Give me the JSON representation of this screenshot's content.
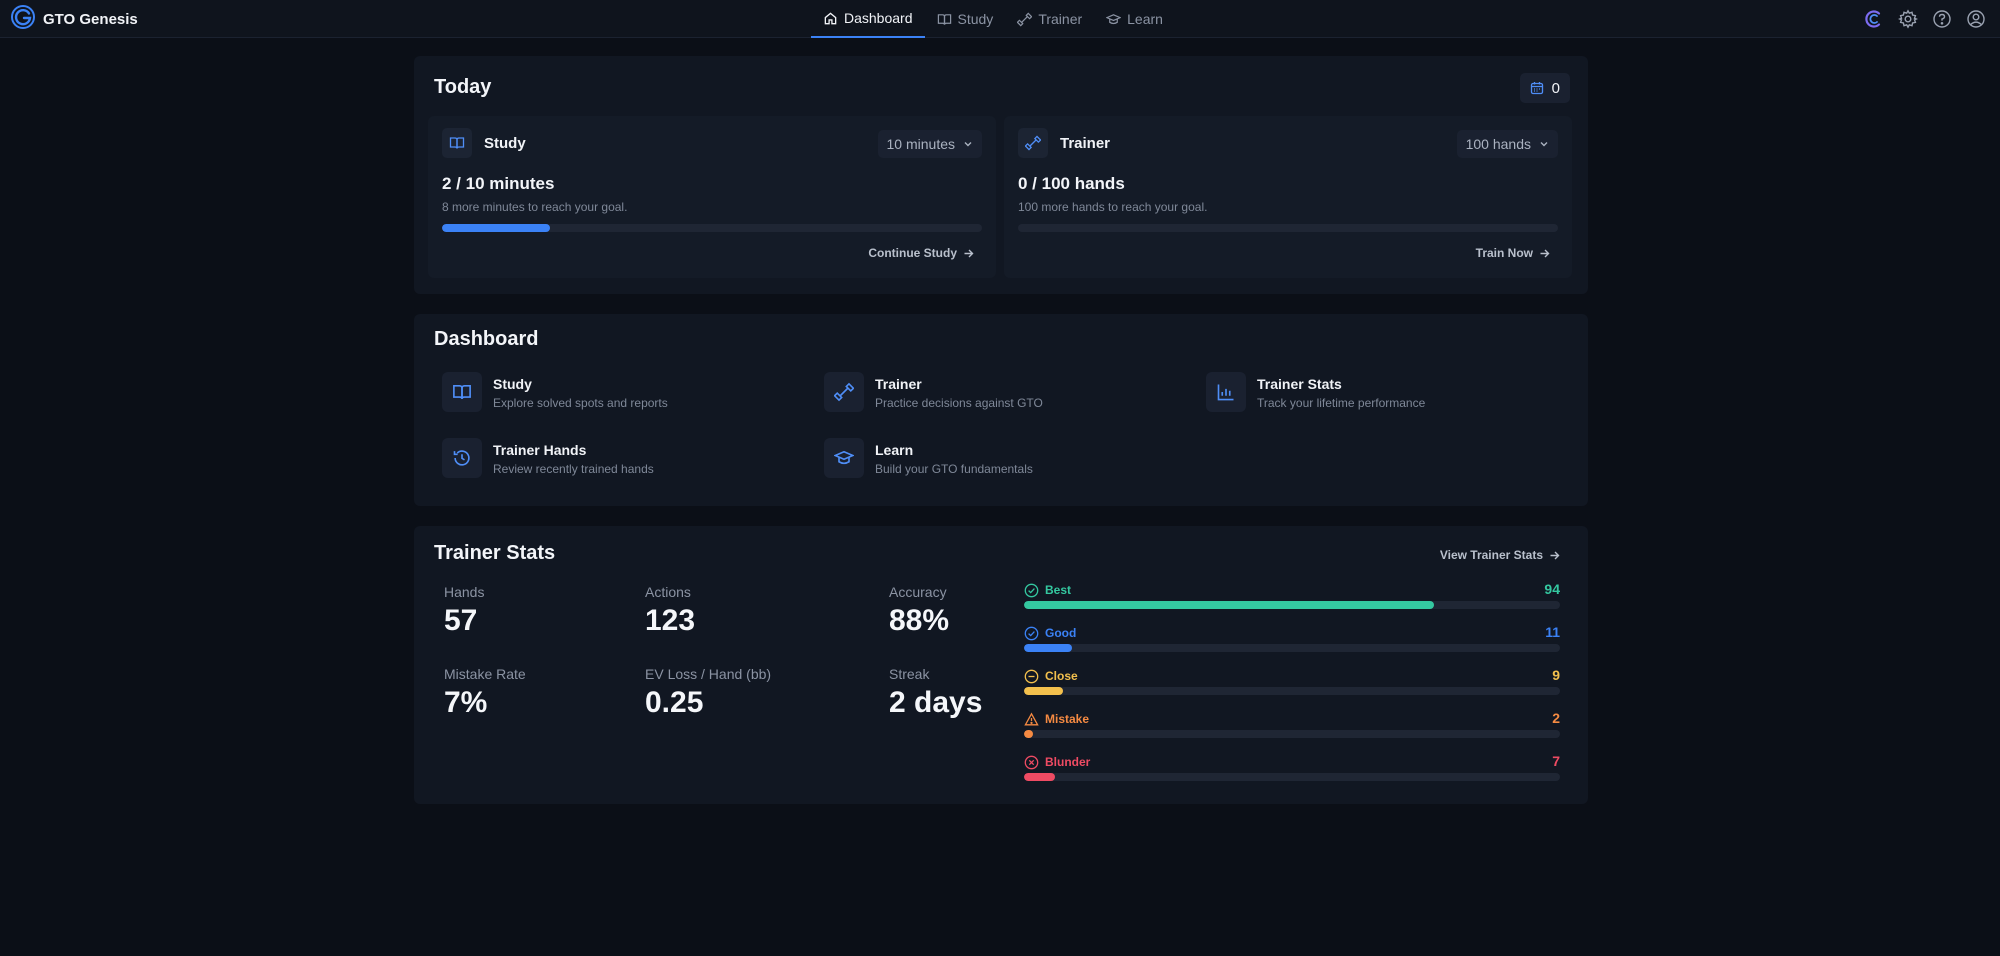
{
  "app": {
    "name": "GTO Genesis"
  },
  "nav": {
    "items": [
      {
        "label": "Dashboard",
        "icon": "home-icon",
        "active": true
      },
      {
        "label": "Study",
        "icon": "book-icon",
        "active": false
      },
      {
        "label": "Trainer",
        "icon": "dumbbell-icon",
        "active": false
      },
      {
        "label": "Learn",
        "icon": "graduation-cap-icon",
        "active": false
      }
    ],
    "right_icons": [
      "spinner-logo-icon",
      "settings-gear-icon",
      "help-circle-icon",
      "user-profile-icon"
    ]
  },
  "today": {
    "title": "Today",
    "streak_count": "0",
    "study": {
      "label": "Study",
      "goal_select": "10 minutes",
      "progress_text": "2 / 10 minutes",
      "subtext": "8 more minutes to reach your goal.",
      "progress": 0.2,
      "link": "Continue Study"
    },
    "trainer": {
      "label": "Trainer",
      "goal_select": "100 hands",
      "progress_text": "0 / 100 hands",
      "subtext": "100 more hands to reach your goal.",
      "progress": 0,
      "link": "Train Now"
    }
  },
  "dashboard": {
    "title": "Dashboard",
    "items": [
      {
        "title": "Study",
        "desc": "Explore solved spots and reports",
        "icon": "book-icon"
      },
      {
        "title": "Trainer",
        "desc": "Practice decisions against GTO",
        "icon": "dumbbell-icon"
      },
      {
        "title": "Trainer Stats",
        "desc": "Track your lifetime performance",
        "icon": "bar-chart-icon"
      },
      {
        "title": "Trainer Hands",
        "desc": "Review recently trained hands",
        "icon": "history-icon"
      },
      {
        "title": "Learn",
        "desc": "Build your GTO fundamentals",
        "icon": "graduation-cap-icon"
      }
    ]
  },
  "trainer_stats": {
    "title": "Trainer Stats",
    "view_link": "View Trainer Stats",
    "stats": [
      {
        "label": "Hands",
        "value": "57"
      },
      {
        "label": "Actions",
        "value": "123"
      },
      {
        "label": "Accuracy",
        "value": "88%"
      },
      {
        "label": "Mistake Rate",
        "value": "7%"
      },
      {
        "label": "EV Loss / Hand (bb)",
        "value": "0.25"
      },
      {
        "label": "Streak",
        "value": "2 days"
      }
    ],
    "quality_max": 123,
    "quality": [
      {
        "name": "Best",
        "count": 94,
        "color": "#34c8a0",
        "icon": "check-circle-icon"
      },
      {
        "name": "Good",
        "count": 11,
        "color": "#3b82f6",
        "icon": "check-circle-icon"
      },
      {
        "name": "Close",
        "count": 9,
        "color": "#f3c04d",
        "icon": "minus-circle-icon"
      },
      {
        "name": "Mistake",
        "count": 2,
        "color": "#f58a42",
        "icon": "warning-triangle-icon"
      },
      {
        "name": "Blunder",
        "count": 7,
        "color": "#ef4b63",
        "icon": "x-circle-icon"
      }
    ]
  }
}
